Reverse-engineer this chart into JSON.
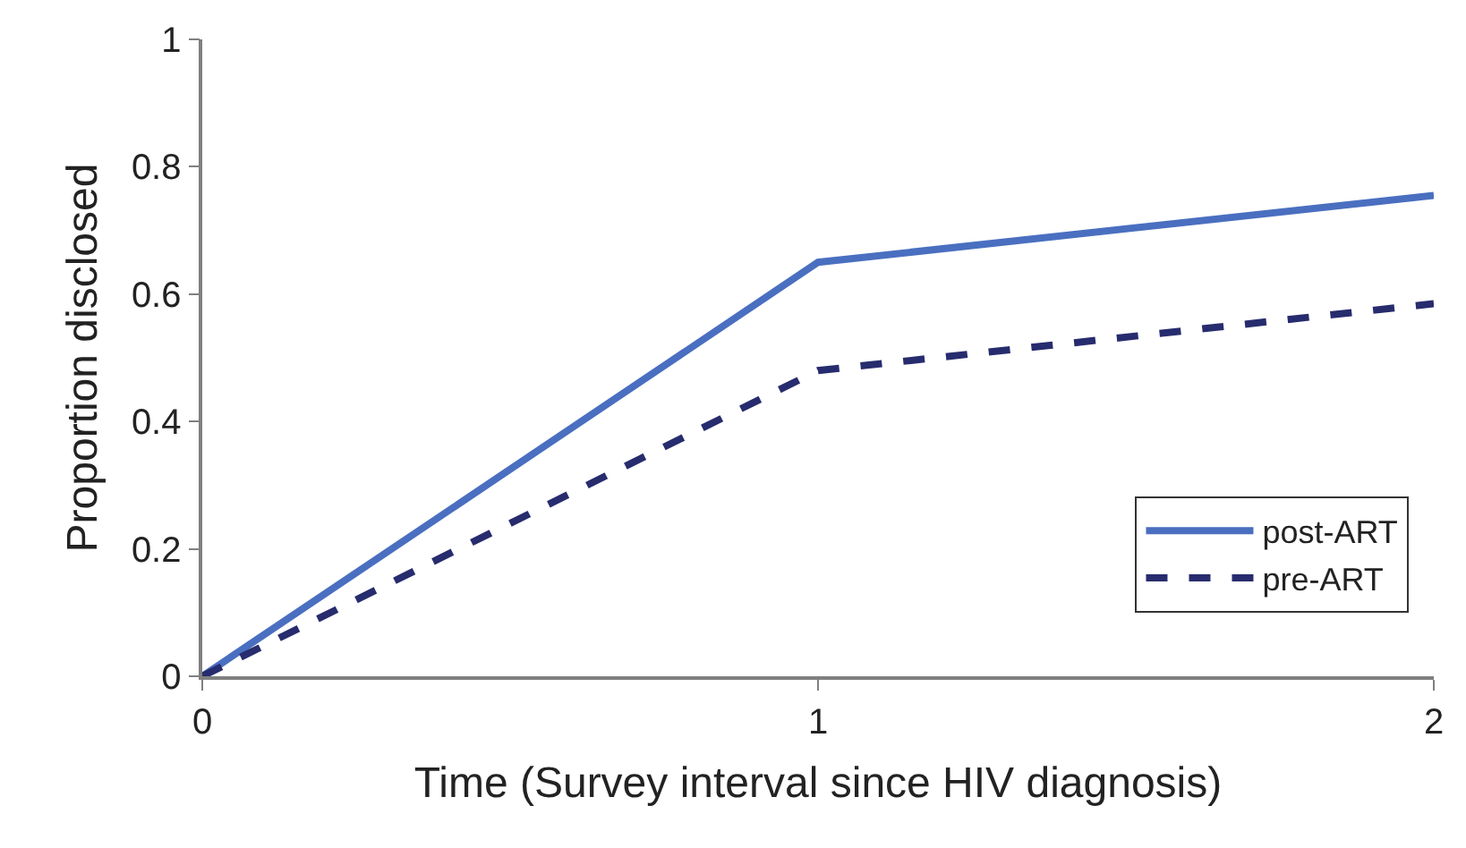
{
  "chart_data": {
    "type": "line",
    "xlabel": "Time (Survey interval since HIV diagnosis)",
    "ylabel": "Proportion disclosed",
    "x": [
      0,
      1,
      2
    ],
    "xlim": [
      0,
      2
    ],
    "xticks": [
      0,
      1,
      2
    ],
    "ylim": [
      0,
      1
    ],
    "yticks": [
      0,
      0.2,
      0.4,
      0.6,
      0.8,
      1
    ],
    "legend": "bottom right",
    "marker": "none",
    "series": [
      {
        "name": "post-ART",
        "color": "#4a6fc0",
        "line_style": "solid",
        "values": [
          0,
          0.65,
          0.755
        ]
      },
      {
        "name": "pre-ART",
        "color": "#272c6e",
        "line_style": "dashed",
        "values": [
          0,
          0.48,
          0.585
        ]
      }
    ]
  }
}
